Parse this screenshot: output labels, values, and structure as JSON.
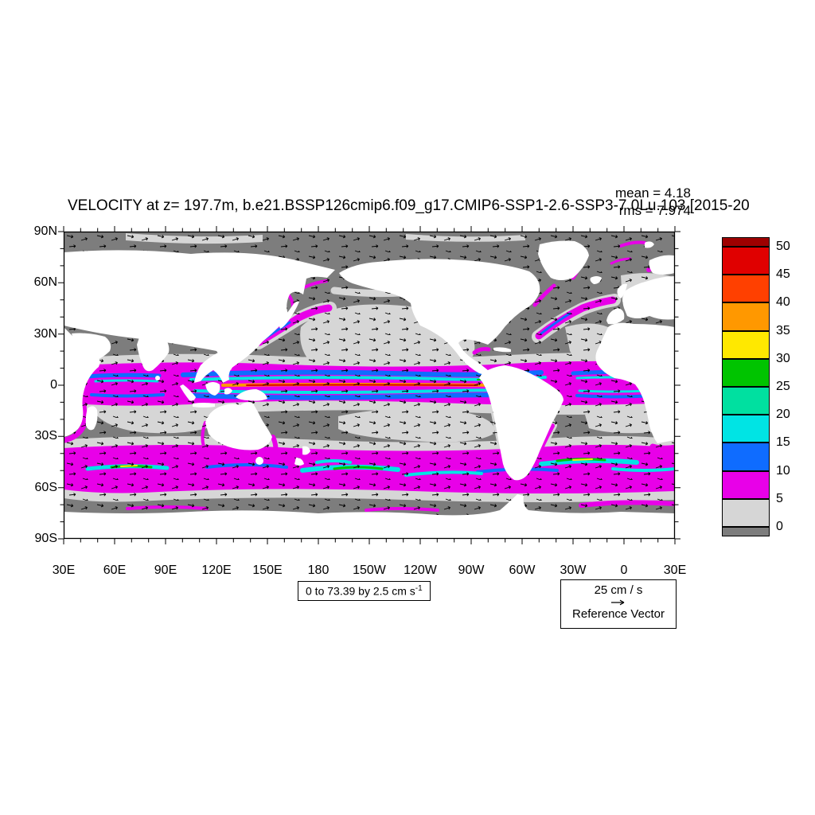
{
  "title": "VELOCITY at z= 197.7m, b.e21.BSSP126cmip6.f09_g17.CMIP6-SSP1-2.6-SSP3-7.0Lu.103 [2015-20",
  "stats": {
    "mean": "mean = 4.18",
    "rms": "rms = 7.974"
  },
  "axes": {
    "y_labels": [
      "90N",
      "60N",
      "30N",
      "0",
      "30S",
      "60S",
      "90S"
    ],
    "x_labels": [
      "30E",
      "60E",
      "90E",
      "120E",
      "150E",
      "180",
      "150W",
      "120W",
      "90W",
      "60W",
      "30W",
      "0",
      "30E"
    ]
  },
  "colorbar": {
    "labels": [
      "50",
      "45",
      "40",
      "35",
      "30",
      "25",
      "20",
      "15",
      "10",
      "5",
      "0"
    ],
    "colors": [
      "#9e0000",
      "#e00000",
      "#ff4000",
      "#ff9800",
      "#ffe800",
      "#00c400",
      "#00e0a0",
      "#00e4e4",
      "#0f6cff",
      "#e800e8",
      "#d6d6d6",
      "#7d7d7d"
    ]
  },
  "annotations": {
    "contour_range": "0 to 73.39 by 2.5 cm s",
    "contour_range_sup": "-1",
    "reference_vector_value": "25 cm / s",
    "reference_vector_label": "Reference Vector"
  },
  "chart_data": {
    "type": "heatmap",
    "title": "VELOCITY at z= 197.7m, b.e21.BSSP126cmip6.f09_g17.CMIP6-SSP1-2.6-SSP3-7.0Lu.103 [2015-20",
    "field": "VELOCITY",
    "depth_m": 197.7,
    "units": "cm s-1",
    "mean": 4.18,
    "rms": 7.974,
    "contour_min": 0,
    "contour_max": 73.39,
    "contour_interval": 2.5,
    "colorbar_ticks": [
      50,
      45,
      40,
      35,
      30,
      25,
      20,
      15,
      10,
      5,
      0
    ],
    "colorbar_colors": [
      "#9e0000",
      "#e00000",
      "#ff4000",
      "#ff9800",
      "#ffe800",
      "#00c400",
      "#00e0a0",
      "#00e4e4",
      "#0f6cff",
      "#e800e8",
      "#d6d6d6",
      "#7d7d7d"
    ],
    "x_tick_labels": [
      "30E",
      "60E",
      "90E",
      "120E",
      "150E",
      "180",
      "150W",
      "120W",
      "90W",
      "60W",
      "30W",
      "0",
      "30E"
    ],
    "y_tick_labels": [
      "90N",
      "60N",
      "30N",
      "0",
      "30S",
      "60S",
      "90S"
    ],
    "reference_vector": "25 cm / s",
    "legend_position": "right",
    "overlay": "vector field arrows",
    "projection": "cylindrical equidistant, left edge 30E"
  }
}
